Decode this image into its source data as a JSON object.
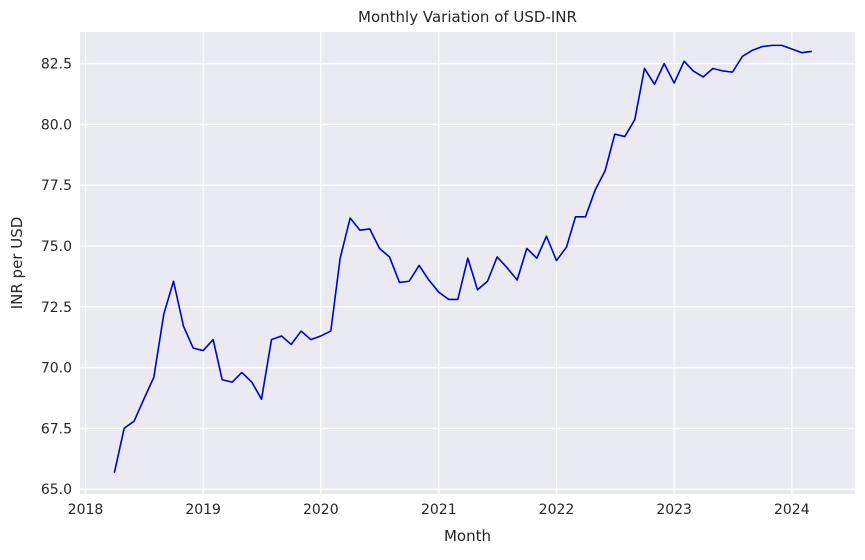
{
  "chart_data": {
    "type": "line",
    "title": "Monthly Variation of USD-INR",
    "xlabel": "Month",
    "ylabel": "INR per USD",
    "x_axis_kind": "date",
    "xlim": [
      "2017-12-15",
      "2024-07-15"
    ],
    "ylim": [
      64.8,
      83.8
    ],
    "xticks": [
      {
        "date": "2018-01-01",
        "label": "2018"
      },
      {
        "date": "2019-01-01",
        "label": "2019"
      },
      {
        "date": "2020-01-01",
        "label": "2020"
      },
      {
        "date": "2021-01-01",
        "label": "2021"
      },
      {
        "date": "2022-01-01",
        "label": "2022"
      },
      {
        "date": "2023-01-01",
        "label": "2023"
      },
      {
        "date": "2024-01-01",
        "label": "2024"
      }
    ],
    "yticks": [
      {
        "value": 65.0,
        "label": "65.0"
      },
      {
        "value": 67.5,
        "label": "67.5"
      },
      {
        "value": 70.0,
        "label": "70.0"
      },
      {
        "value": 72.5,
        "label": "72.5"
      },
      {
        "value": 75.0,
        "label": "75.0"
      },
      {
        "value": 77.5,
        "label": "77.5"
      },
      {
        "value": 80.0,
        "label": "80.0"
      },
      {
        "value": 82.5,
        "label": "82.5"
      }
    ],
    "grid": true,
    "legend": false,
    "colors": {
      "line": "#0000cc",
      "plot_background": "#eaeaf2",
      "grid": "#ffffff",
      "text": "#262626"
    },
    "series": [
      {
        "x": [
          "2018-04-01",
          "2018-05-01",
          "2018-06-01",
          "2018-07-01",
          "2018-08-01",
          "2018-09-01",
          "2018-10-01",
          "2018-11-01",
          "2018-12-01",
          "2019-01-01",
          "2019-02-01",
          "2019-03-01",
          "2019-04-01",
          "2019-05-01",
          "2019-06-01",
          "2019-07-01",
          "2019-08-01",
          "2019-09-01",
          "2019-10-01",
          "2019-11-01",
          "2019-12-01",
          "2020-01-01",
          "2020-02-01",
          "2020-03-01",
          "2020-04-01",
          "2020-05-01",
          "2020-06-01",
          "2020-07-01",
          "2020-08-01",
          "2020-09-01",
          "2020-10-01",
          "2020-11-01",
          "2020-12-01",
          "2021-01-01",
          "2021-02-01",
          "2021-03-01",
          "2021-04-01",
          "2021-05-01",
          "2021-06-01",
          "2021-07-01",
          "2021-08-01",
          "2021-09-01",
          "2021-10-01",
          "2021-11-01",
          "2021-12-01",
          "2022-01-01",
          "2022-02-01",
          "2022-03-01",
          "2022-04-01",
          "2022-05-01",
          "2022-06-01",
          "2022-07-01",
          "2022-08-01",
          "2022-09-01",
          "2022-10-01",
          "2022-11-01",
          "2022-12-01",
          "2023-01-01",
          "2023-02-01",
          "2023-03-01",
          "2023-04-01",
          "2023-05-01",
          "2023-06-01",
          "2023-07-01",
          "2023-08-01",
          "2023-09-01",
          "2023-10-01",
          "2023-11-01",
          "2023-12-01",
          "2024-01-01",
          "2024-02-01",
          "2024-03-01"
        ],
        "y": [
          65.7,
          67.5,
          67.8,
          68.7,
          69.6,
          72.2,
          73.55,
          71.7,
          70.8,
          70.7,
          71.15,
          69.5,
          69.4,
          69.8,
          69.4,
          68.7,
          71.15,
          71.3,
          70.95,
          71.5,
          71.15,
          71.3,
          71.5,
          74.5,
          76.15,
          75.65,
          75.7,
          74.9,
          74.55,
          73.5,
          73.55,
          74.2,
          73.6,
          73.1,
          72.8,
          72.8,
          74.5,
          73.2,
          73.55,
          74.55,
          74.1,
          73.6,
          74.9,
          74.5,
          75.4,
          74.4,
          74.95,
          76.2,
          76.2,
          77.3,
          78.1,
          79.6,
          79.5,
          80.2,
          82.3,
          81.65,
          82.5,
          81.7,
          82.6,
          82.2,
          81.95,
          82.3,
          82.2,
          82.15,
          82.8,
          83.05,
          83.2,
          83.25,
          83.25,
          83.1,
          82.95,
          83.0
        ]
      }
    ]
  }
}
